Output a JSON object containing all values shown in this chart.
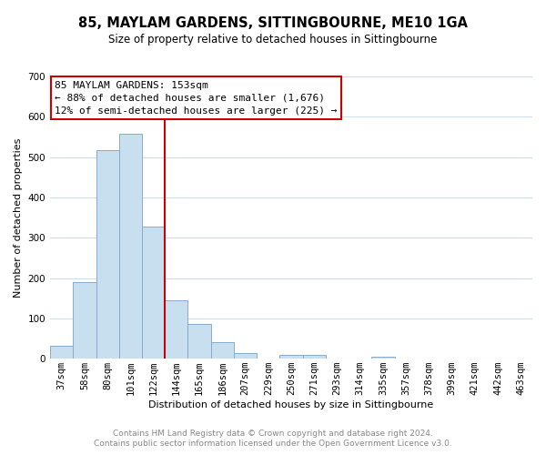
{
  "title": "85, MAYLAM GARDENS, SITTINGBOURNE, ME10 1GA",
  "subtitle": "Size of property relative to detached houses in Sittingbourne",
  "xlabel": "Distribution of detached houses by size in Sittingbourne",
  "ylabel": "Number of detached properties",
  "footer_line1": "Contains HM Land Registry data © Crown copyright and database right 2024.",
  "footer_line2": "Contains public sector information licensed under the Open Government Licence v3.0.",
  "bar_labels": [
    "37sqm",
    "58sqm",
    "80sqm",
    "101sqm",
    "122sqm",
    "144sqm",
    "165sqm",
    "186sqm",
    "207sqm",
    "229sqm",
    "250sqm",
    "271sqm",
    "293sqm",
    "314sqm",
    "335sqm",
    "357sqm",
    "378sqm",
    "399sqm",
    "421sqm",
    "442sqm",
    "463sqm"
  ],
  "bar_values": [
    33,
    190,
    518,
    557,
    328,
    145,
    87,
    40,
    15,
    0,
    9,
    10,
    0,
    0,
    5,
    0,
    0,
    0,
    0,
    0,
    0
  ],
  "bar_color": "#c8dff0",
  "bar_edge_color": "#88aacc",
  "ylim": [
    0,
    700
  ],
  "yticks": [
    0,
    100,
    200,
    300,
    400,
    500,
    600,
    700
  ],
  "redline_color": "#cc0000",
  "annotation_title": "85 MAYLAM GARDENS: 153sqm",
  "annotation_line2": "← 88% of detached houses are smaller (1,676)",
  "annotation_line3": "12% of semi-detached houses are larger (225) →",
  "annotation_box_facecolor": "#ffffff",
  "annotation_border_color": "#cc0000",
  "background_color": "#ffffff",
  "grid_color": "#d0dde8",
  "title_fontsize": 10.5,
  "subtitle_fontsize": 8.5,
  "axis_label_fontsize": 8,
  "tick_fontsize": 7.5,
  "annotation_fontsize": 8,
  "footer_fontsize": 6.5,
  "footer_color": "#888888"
}
